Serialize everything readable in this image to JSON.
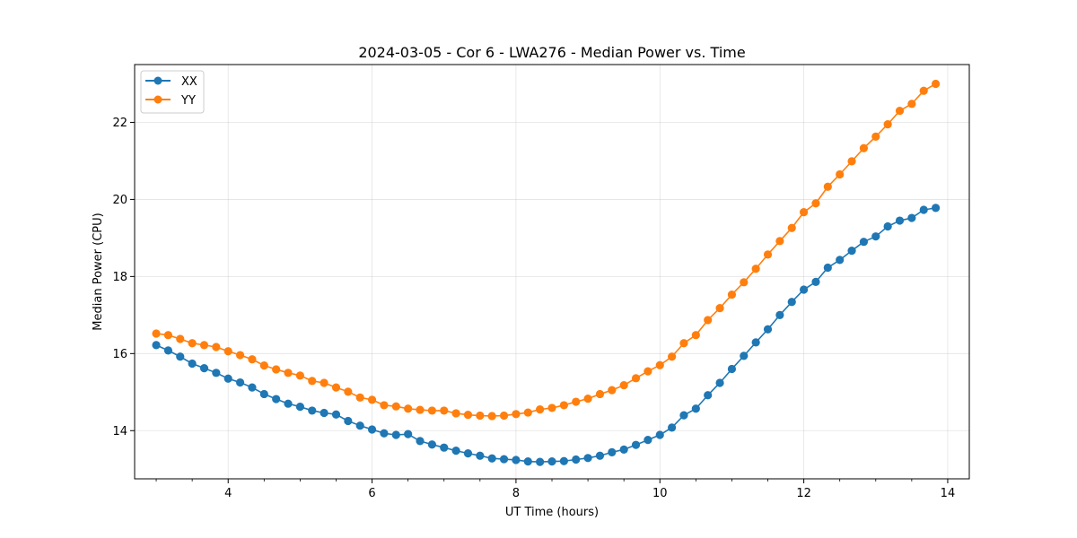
{
  "chart_data": {
    "type": "line",
    "title": "2024-03-05 - Cor 6 - LWA276 - Median Power vs. Time",
    "xlabel": "UT Time (hours)",
    "ylabel": "Median Power (CPU)",
    "xlim": [
      2.7,
      14.3
    ],
    "ylim": [
      12.75,
      23.5
    ],
    "xticks": [
      4,
      6,
      8,
      10,
      12,
      14
    ],
    "xtick_labels": [
      "4",
      "6",
      "8",
      "10",
      "12",
      "14"
    ],
    "xminor_step": 0.5,
    "yticks": [
      14,
      16,
      18,
      20,
      22
    ],
    "ytick_labels": [
      "14",
      "16",
      "18",
      "20",
      "22"
    ],
    "grid": true,
    "legend_position": "top-left",
    "x": [
      3.0,
      3.1667,
      3.3333,
      3.5,
      3.6667,
      3.8333,
      4.0,
      4.1667,
      4.3333,
      4.5,
      4.6667,
      4.8333,
      5.0,
      5.1667,
      5.3333,
      5.5,
      5.6667,
      5.8333,
      6.0,
      6.1667,
      6.3333,
      6.5,
      6.6667,
      6.8333,
      7.0,
      7.1667,
      7.3333,
      7.5,
      7.6667,
      7.8333,
      8.0,
      8.1667,
      8.3333,
      8.5,
      8.6667,
      8.8333,
      9.0,
      9.1667,
      9.3333,
      9.5,
      9.6667,
      9.8333,
      10.0,
      10.1667,
      10.3333,
      10.5,
      10.6667,
      10.8333,
      11.0,
      11.1667,
      11.3333,
      11.5,
      11.6667,
      11.8333,
      12.0,
      12.1667,
      12.3333,
      12.5,
      12.6667,
      12.8333,
      13.0,
      13.1667,
      13.3333,
      13.5,
      13.6667,
      13.8333
    ],
    "series": [
      {
        "name": "XX",
        "color": "#1f77b4",
        "values": [
          16.22,
          16.08,
          15.92,
          15.74,
          15.62,
          15.5,
          15.35,
          15.25,
          15.12,
          14.95,
          14.82,
          14.7,
          14.62,
          14.52,
          14.46,
          14.42,
          14.25,
          14.13,
          14.03,
          13.93,
          13.89,
          13.91,
          13.73,
          13.64,
          13.56,
          13.48,
          13.41,
          13.35,
          13.28,
          13.26,
          13.24,
          13.2,
          13.19,
          13.2,
          13.21,
          13.25,
          13.29,
          13.35,
          13.44,
          13.51,
          13.63,
          13.76,
          13.89,
          14.08,
          14.4,
          14.57,
          14.92,
          15.24,
          15.6,
          15.94,
          16.29,
          16.63,
          17.0,
          17.34,
          17.66,
          17.86,
          18.23,
          18.43,
          18.67,
          18.9,
          19.04,
          19.3,
          19.45,
          19.52,
          19.73,
          19.78
        ]
      },
      {
        "name": "YY",
        "color": "#ff7f0e",
        "values": [
          16.52,
          16.48,
          16.38,
          16.27,
          16.22,
          16.17,
          16.06,
          15.96,
          15.85,
          15.69,
          15.59,
          15.5,
          15.43,
          15.29,
          15.24,
          15.12,
          15.01,
          14.86,
          14.8,
          14.66,
          14.63,
          14.57,
          14.54,
          14.52,
          14.52,
          14.45,
          14.41,
          14.39,
          14.38,
          14.39,
          14.43,
          14.47,
          14.55,
          14.59,
          14.66,
          14.75,
          14.83,
          14.95,
          15.05,
          15.18,
          15.36,
          15.54,
          15.7,
          15.92,
          16.27,
          16.48,
          16.87,
          17.18,
          17.53,
          17.85,
          18.2,
          18.57,
          18.92,
          19.26,
          19.67,
          19.9,
          20.33,
          20.65,
          20.99,
          21.33,
          21.63,
          21.95,
          22.3,
          22.48,
          22.82,
          23.0
        ]
      }
    ]
  }
}
